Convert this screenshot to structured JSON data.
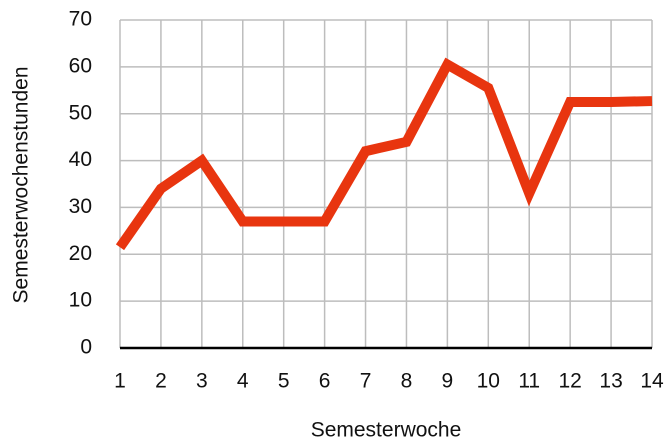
{
  "chart_data": {
    "type": "line",
    "x_label": "Semesterwoche",
    "y_label": "Semesterwochenstunden",
    "categories": [
      "1",
      "2",
      "3",
      "4",
      "5",
      "6",
      "7",
      "8",
      "9",
      "10",
      "11",
      "12",
      "13",
      "14"
    ],
    "series": [
      {
        "name": null,
        "color": "#e8350f",
        "values": [
          21.5,
          34,
          40,
          27,
          27,
          27,
          42,
          44,
          60.5,
          55.5,
          33,
          52.5,
          52.5,
          52.7
        ]
      }
    ],
    "ylim": [
      0,
      70
    ],
    "yticks": [
      0,
      10,
      20,
      30,
      40,
      50,
      60,
      70
    ],
    "grid": true
  }
}
